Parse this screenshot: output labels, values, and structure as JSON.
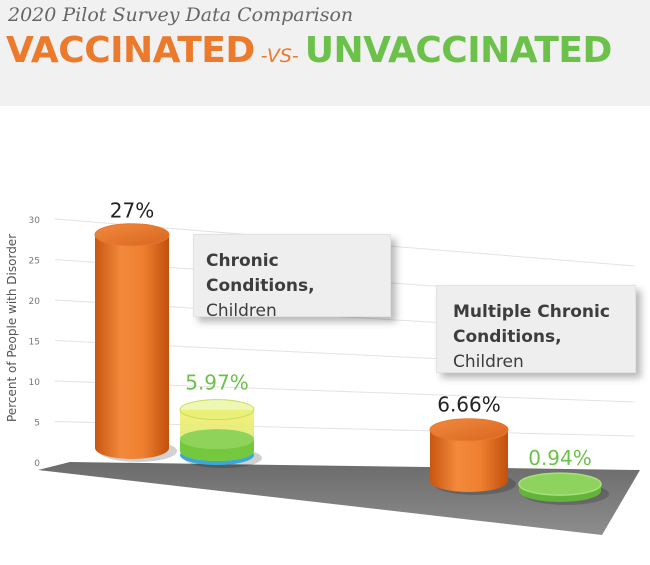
{
  "header": {
    "subtitle": "2020 Pilot Survey Data Comparison",
    "title_vax": "VACCINATED",
    "title_vs": "-VS-",
    "title_unvax": "UNVACCINATED"
  },
  "colors": {
    "vaccinated": "#ec7a2d",
    "unvaccinated": "#6cc14a",
    "header_bg": "#f1f1f1"
  },
  "callouts": {
    "c1_bold": "Chronic Conditions,",
    "c1_rest": "Children",
    "c2_bold_1": "Multiple Chronic",
    "c2_bold_2": "Conditions,",
    "c2_rest": "Children"
  },
  "chart_data": {
    "type": "bar",
    "categories": [
      "Chronic Conditions, Children",
      "Multiple Chronic Conditions, Children"
    ],
    "series": [
      {
        "name": "VACCINATED",
        "values": [
          27,
          6.66
        ]
      },
      {
        "name": "UNVACCINATED",
        "values": [
          5.97,
          0.94
        ]
      }
    ],
    "data_labels": [
      [
        "27%",
        "5.97%"
      ],
      [
        "6.66%",
        "0.94%"
      ]
    ],
    "ylabel": "Percent of People with Disorder",
    "yticks": [
      0,
      5,
      10,
      15,
      20,
      25,
      30
    ],
    "ylim": [
      0,
      30
    ],
    "grid": true
  }
}
